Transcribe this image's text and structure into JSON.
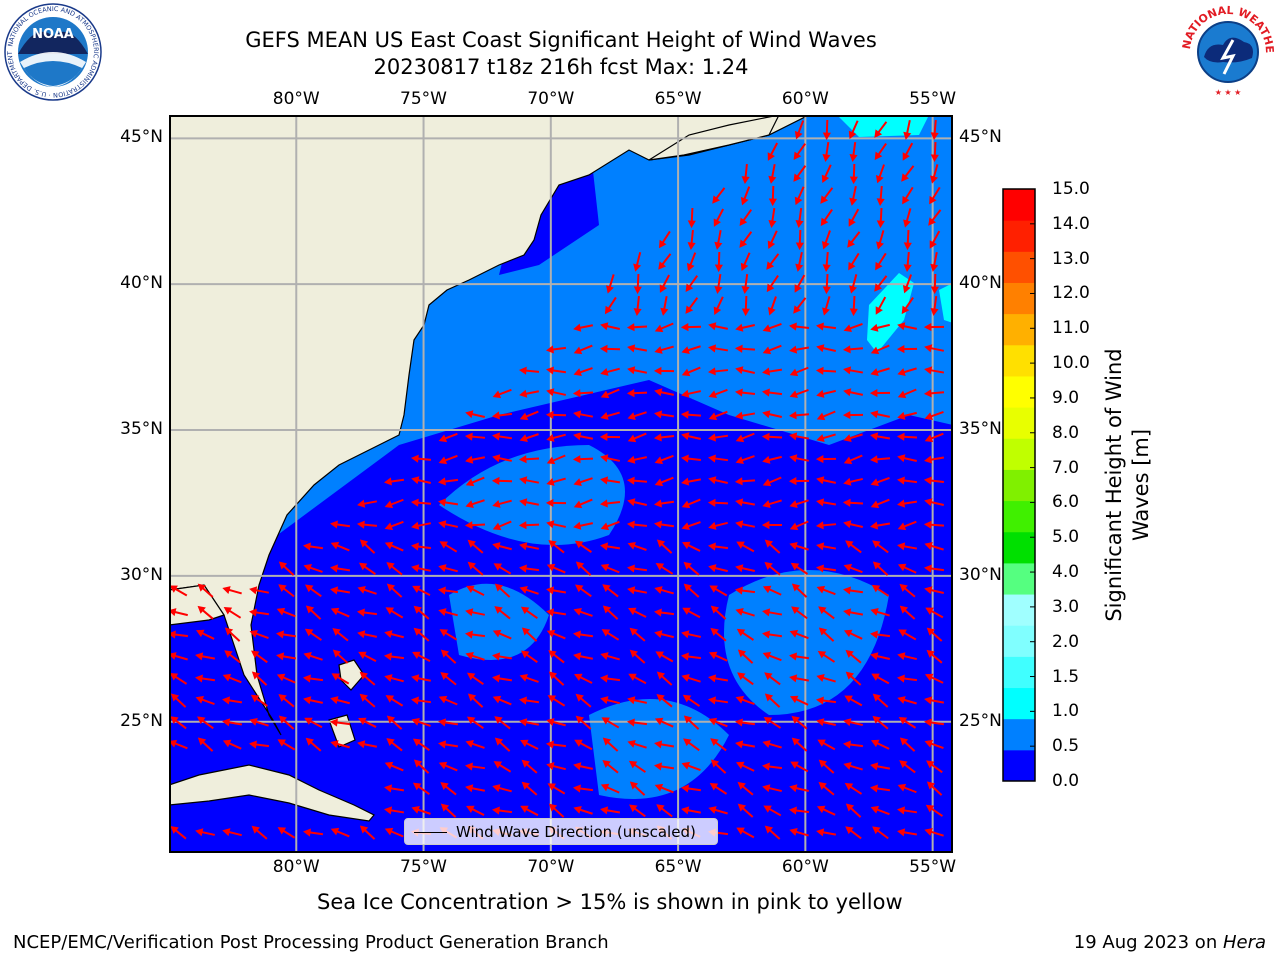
{
  "title": {
    "line1": "GEFS MEAN US East Coast Significant Height of Wind Waves",
    "line2": "20230817 t18z 216h fcst   Max: 1.24"
  },
  "map": {
    "lon_labels": [
      "80°W",
      "75°W",
      "70°W",
      "65°W",
      "60°W",
      "55°W"
    ],
    "lat_labels": [
      "45°N",
      "40°N",
      "35°N",
      "30°N",
      "25°N"
    ],
    "lon_values": [
      -80,
      -75,
      -70,
      -65,
      -60,
      -55
    ],
    "lat_values": [
      45,
      40,
      35,
      30,
      25
    ],
    "extent": {
      "lon": [
        -85,
        -54.2
      ],
      "lat": [
        20.5,
        45.8
      ]
    },
    "colors": {
      "land": "#efeedc",
      "ocean_low": "#0000ff",
      "ocean_mid": "#0080ff",
      "ocean_high": "#00ffff",
      "arrow": "#ff0000",
      "grid": "#b0b0b0"
    }
  },
  "legend": {
    "label": "Wind Wave Direction (unscaled)"
  },
  "colorbar": {
    "label_line1": "Significant Height of Wind",
    "label_line2": "Waves [m]",
    "ticks": [
      "0.0",
      "0.5",
      "1.0",
      "1.5",
      "2.0",
      "3.0",
      "4.0",
      "5.0",
      "6.0",
      "7.0",
      "8.0",
      "9.0",
      "10.0",
      "11.0",
      "12.0",
      "13.0",
      "14.0",
      "15.0"
    ],
    "colors": [
      "#0000ff",
      "#0080ff",
      "#00ffff",
      "#40ffff",
      "#80ffff",
      "#a0ffff",
      "#55ff80",
      "#00e000",
      "#40f000",
      "#80f000",
      "#c0ff00",
      "#e8ff00",
      "#ffff00",
      "#ffe000",
      "#ffb000",
      "#ff8000",
      "#ff5000",
      "#ff2000",
      "#ff0000"
    ]
  },
  "ice_note": "Sea Ice Concentration > 15% is shown in pink to yellow",
  "footer": {
    "left": "NCEP/EMC/Verification Post Processing Product Generation Branch",
    "date": "19 Aug 2023 on ",
    "host": "Hera"
  },
  "logos": {
    "noaa_text": "NOAA",
    "noaa_ring": "NATIONAL OCEANIC AND ATMOSPHERIC ADMINISTRATION · U.S. DEPARTMENT OF COMMERCE",
    "nws_ring": "NATIONAL WEATHER SERVICE"
  }
}
